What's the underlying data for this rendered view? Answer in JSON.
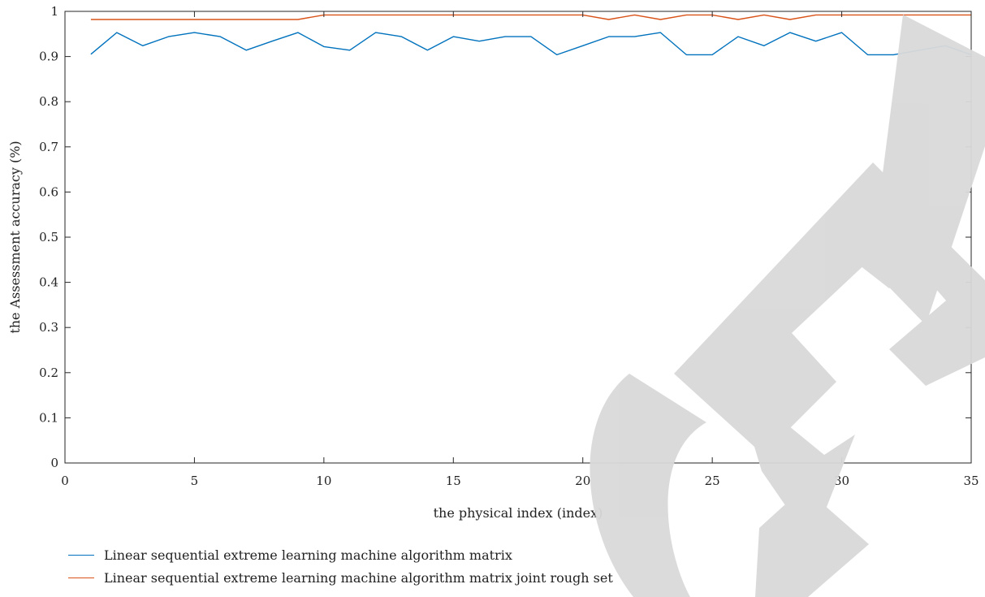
{
  "chart_data": {
    "type": "line",
    "title": "",
    "xlabel": "the physical index (index)",
    "ylabel": "the Assessment accuracy (%)",
    "xlim": [
      0,
      35
    ],
    "ylim": [
      0,
      1
    ],
    "xticks": [
      0,
      5,
      10,
      15,
      20,
      25,
      30,
      35
    ],
    "yticks": [
      0,
      0.1,
      0.2,
      0.3,
      0.4,
      0.5,
      0.6,
      0.7,
      0.8,
      0.9,
      1
    ],
    "ytick_labels": [
      "0",
      "0.1",
      "0.2",
      "0.3",
      "0.4",
      "0.5",
      "0.6",
      "0.7",
      "0.8",
      "0.9",
      "1"
    ],
    "grid": false,
    "legend_position": "bottom-left",
    "x": [
      1,
      2,
      3,
      4,
      5,
      6,
      7,
      8,
      9,
      10,
      11,
      12,
      13,
      14,
      15,
      16,
      17,
      18,
      19,
      20,
      21,
      22,
      23,
      24,
      25,
      26,
      27,
      28,
      29,
      30,
      31,
      32,
      33,
      34,
      35
    ],
    "series": [
      {
        "name": "Linear sequential extreme learning machine algorithm matrix",
        "color": "#0072BD",
        "values": [
          0.905,
          0.953,
          0.924,
          0.944,
          0.953,
          0.944,
          0.914,
          0.934,
          0.953,
          0.922,
          0.914,
          0.953,
          0.944,
          0.914,
          0.944,
          0.934,
          0.944,
          0.944,
          0.904,
          0.924,
          0.944,
          0.944,
          0.953,
          0.904,
          0.904,
          0.944,
          0.924,
          0.953,
          0.934,
          0.953,
          0.904,
          0.904,
          0.914,
          0.924,
          0.904
        ]
      },
      {
        "name": "Linear sequential extreme learning machine algorithm matrix joint rough set",
        "color": "#D95319",
        "values": [
          0.982,
          0.982,
          0.982,
          0.982,
          0.982,
          0.982,
          0.982,
          0.982,
          0.982,
          0.992,
          0.992,
          0.992,
          0.992,
          0.992,
          0.992,
          0.992,
          0.992,
          0.992,
          0.992,
          0.992,
          0.982,
          0.992,
          0.982,
          0.992,
          0.992,
          0.982,
          0.992,
          0.982,
          0.992,
          0.992,
          0.992,
          0.992,
          0.992,
          0.992,
          0.992
        ]
      }
    ]
  }
}
